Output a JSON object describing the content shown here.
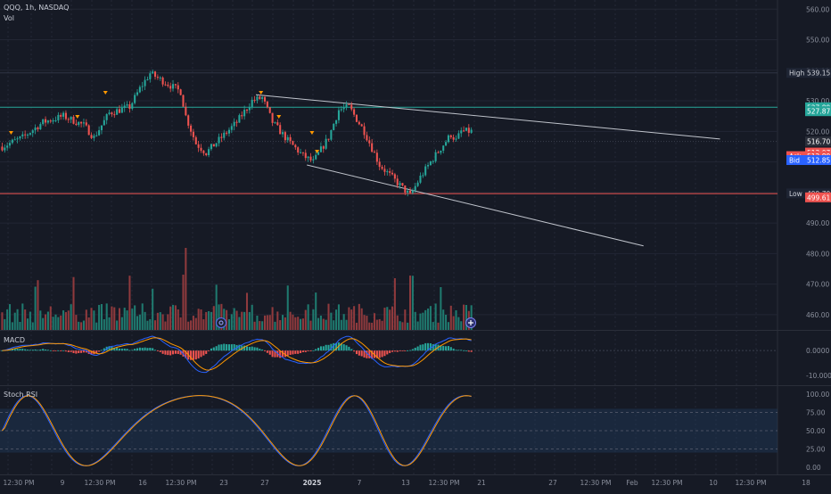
{
  "header": {
    "symbol_line": "QQQ, 1h, NASDAQ",
    "vol_label": "Vol"
  },
  "panels": {
    "macd_label": "MACD",
    "stoch_label": "Stoch RSI"
  },
  "colors": {
    "background": "#161a25",
    "up": "#26a69a",
    "down": "#ef5350",
    "macd_line": "#2962ff",
    "signal_line": "#ff9800",
    "stoch_k": "#2962ff",
    "stoch_d": "#ff9800",
    "level_line": "#26a69a",
    "support_line": "#ef5350",
    "trendline": "#c0c4cc",
    "stoch_band": "#1e3a5a"
  },
  "icons": {
    "volume_marker": "circle-dot-icon",
    "indicator_add": "plus-circle-icon"
  },
  "price_scale": {
    "ticks": [
      "560.00",
      "550.00",
      "540.00",
      "530.00",
      "520.00",
      "510.00",
      "500.00",
      "490.00",
      "480.00",
      "470.00",
      "460.00"
    ],
    "tick_values": [
      560,
      550,
      540,
      530,
      520,
      510,
      500,
      490,
      480,
      470,
      460
    ],
    "labels": [
      {
        "prefix": "High",
        "value": "539.15",
        "bg": "#1e2433",
        "color": "#d1d4dc",
        "price": 539.15
      },
      {
        "prefix": "",
        "value": "527.89",
        "bg": "#26a69a",
        "color": "#ffffff",
        "price": 527.89
      },
      {
        "prefix": "",
        "value": "527.87",
        "bg": "#26a69a",
        "color": "#ffffff",
        "price": 526.6
      },
      {
        "prefix": "",
        "value": "516.70",
        "bg": "#2a2e39",
        "color": "#ffffff",
        "price": 516.7
      },
      {
        "prefix": "",
        "value": "513.07",
        "bg": "#ef5350",
        "color": "#ffffff",
        "price": 513.07
      },
      {
        "prefix": "Ask",
        "value": "512.89",
        "bg": "#ef5350",
        "color": "#ffffff",
        "price": 511.9
      },
      {
        "prefix": "Bid",
        "value": "512.85",
        "bg": "#2962ff",
        "color": "#ffffff",
        "price": 510.6
      },
      {
        "prefix": "Low",
        "value": "499.70",
        "bg": "#1e2433",
        "color": "#d1d4dc",
        "price": 499.7
      },
      {
        "prefix": "",
        "value": "499.61",
        "bg": "#ef5350",
        "color": "#ffffff",
        "price": 498.4
      }
    ]
  },
  "macd_scale": {
    "ticks": [
      "0.0000",
      "-10.0000"
    ],
    "tick_values": [
      0,
      -10
    ]
  },
  "stoch_scale": {
    "ticks": [
      "100.00",
      "75.00",
      "50.00",
      "25.00",
      "0.00"
    ],
    "tick_values": [
      100,
      75,
      50,
      25,
      0
    ]
  },
  "time_axis": {
    "labels": [
      "12:30 PM",
      "9",
      "12:30 PM",
      "16",
      "12:30 PM",
      "23",
      "27",
      "2025",
      "7",
      "13",
      "12:30 PM",
      "21",
      "27",
      "12:30 PM",
      "Feb",
      "12:30 PM",
      "10",
      "12:30 PM",
      "18"
    ],
    "bold_index": 7
  },
  "chart_data": {
    "type": "candlestick",
    "title": "QQQ, 1h, NASDAQ",
    "y_range": [
      455,
      563
    ],
    "levels": {
      "high": 539.15,
      "resistance": 527.89,
      "last": 516.7,
      "support": 499.61
    },
    "trendlines": [
      {
        "from": {
          "bar": 100,
          "price": 532
        },
        "to": {
          "bar": 282,
          "price": 517.5
        }
      },
      {
        "from": {
          "bar": 120,
          "price": 509
        },
        "to": {
          "bar": 252,
          "price": 482.5
        }
      }
    ],
    "price_path": [
      [
        0,
        515
      ],
      [
        8,
        518
      ],
      [
        16,
        523
      ],
      [
        24,
        525
      ],
      [
        32,
        522
      ],
      [
        36,
        518
      ],
      [
        42,
        526
      ],
      [
        50,
        528
      ],
      [
        54,
        534
      ],
      [
        58,
        539
      ],
      [
        64,
        536
      ],
      [
        70,
        533
      ],
      [
        72,
        525
      ],
      [
        76,
        516
      ],
      [
        80,
        513
      ],
      [
        86,
        518
      ],
      [
        92,
        523
      ],
      [
        98,
        530
      ],
      [
        102,
        531
      ],
      [
        106,
        523
      ],
      [
        112,
        517
      ],
      [
        118,
        512
      ],
      [
        122,
        510
      ],
      [
        128,
        518
      ],
      [
        132,
        527
      ],
      [
        136,
        528
      ],
      [
        142,
        520
      ],
      [
        148,
        509
      ],
      [
        154,
        504
      ],
      [
        160,
        499
      ],
      [
        164,
        505
      ],
      [
        168,
        510
      ],
      [
        176,
        519
      ],
      [
        180,
        520
      ],
      [
        178,
        517
      ]
    ]
  }
}
